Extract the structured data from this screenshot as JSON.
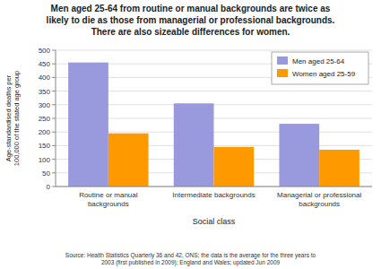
{
  "chart_data": {
    "type": "bar",
    "title": "Men aged 25-64 from routine or manual backgrounds are twice as\nlikely to die as those from managerial or professional backgrounds.\nThere are also sizeable differences for women.",
    "categories": [
      "Routine or manual\nbackgrounds",
      "Intermediate backgrounds",
      "Managerial or professional\nbackgrounds"
    ],
    "series": [
      {
        "name": "Men aged 25-64",
        "color": "#9999dd",
        "values": [
          455,
          305,
          230
        ]
      },
      {
        "name": "Women aged 25-59",
        "color": "#ff9900",
        "values": [
          195,
          145,
          135
        ]
      }
    ],
    "xlabel": "Social class",
    "ylabel": "Age-standardised deaths per\n100,000 of the stated age group",
    "ylim": [
      0,
      500
    ],
    "yticks": [
      0,
      50,
      100,
      150,
      200,
      250,
      300,
      350,
      400,
      450,
      500
    ],
    "grid": true,
    "legend": "upper right",
    "source": "Source: Health Statistics Quarterly 36 and 42, ONS; the data is the average for the three years to\n2003 (first published in 2009); England and Wales; updated Jun 2009"
  }
}
